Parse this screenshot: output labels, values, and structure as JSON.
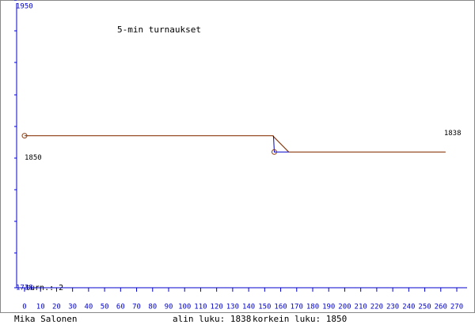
{
  "chart_data": {
    "type": "line",
    "title": "5-min turnaukset",
    "games_label": "turn.: 2",
    "player": "Mika Salonen",
    "min_text": "alin luku: 1838",
    "max_text": "korkein luku: 1850",
    "x": [
      0,
      155,
      165,
      263
    ],
    "series": [
      {
        "color": "#8b3a0f",
        "values": [
          1850,
          1850,
          1838,
          1838
        ]
      }
    ],
    "markers": {
      "x": [
        0,
        156
      ],
      "values": [
        1850,
        1838
      ],
      "color": "#8b3a0f"
    },
    "value_labels": [
      {
        "x": 0,
        "value": 1850,
        "label": "1850"
      },
      {
        "x": 263,
        "value": 1838,
        "label": "1838"
      }
    ],
    "xlim": [
      0,
      270
    ],
    "xticks": [
      0,
      10,
      20,
      30,
      40,
      50,
      60,
      70,
      80,
      90,
      100,
      110,
      120,
      130,
      140,
      150,
      160,
      170,
      180,
      190,
      200,
      210,
      220,
      230,
      240,
      250,
      260,
      270
    ],
    "ylim": [
      1738,
      1950
    ],
    "yticks": [
      1738,
      1950
    ],
    "axis_color": "#0000cc"
  }
}
